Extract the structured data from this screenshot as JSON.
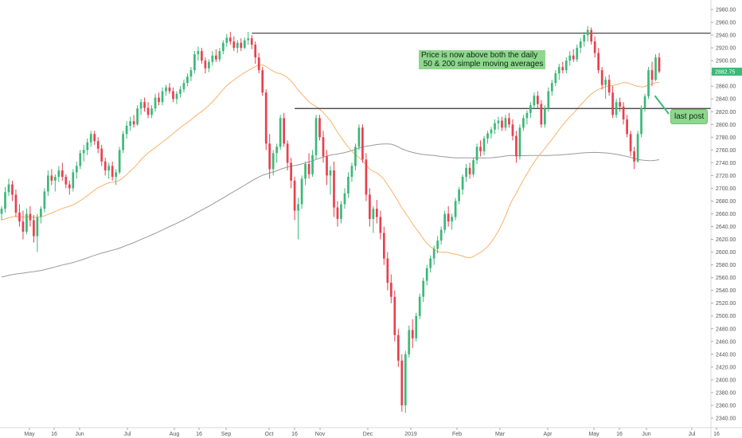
{
  "chart_data": {
    "type": "candlestick",
    "ylim": [
      2330,
      2990
    ],
    "y_ticks": [
      2340,
      2360,
      2380,
      2400,
      2420,
      2440,
      2460,
      2480,
      2500,
      2520,
      2540,
      2560,
      2580,
      2600,
      2620,
      2640,
      2660,
      2680,
      2700,
      2720,
      2740,
      2760,
      2780,
      2800,
      2820,
      2840,
      2860,
      2880,
      2900,
      2920,
      2940,
      2960,
      2980
    ],
    "y_tick_labels": [
      "2340.00",
      "2360.00",
      "2380.00",
      "2400.00",
      "2420.00",
      "2440.00",
      "2460.00",
      "2480.00",
      "2500.00",
      "2520.00",
      "2540.00",
      "2560.00",
      "2580.00",
      "2600.00",
      "2620.00",
      "2640.00",
      "2660.00",
      "2680.00",
      "2700.00",
      "2720.00",
      "2740.00",
      "2760.00",
      "2780.00",
      "2800.00",
      "2820.00",
      "2840.00",
      "2860.00",
      "2880.00",
      "2900.00",
      "2920.00",
      "2940.00",
      "2960.00",
      "2980.00"
    ],
    "x_tick_labels": [
      "May",
      "16",
      "Jun",
      "Jul",
      "Aug",
      "16",
      "Sep",
      "Oct",
      "16",
      "Nov",
      "Dec",
      "2019",
      "Feb",
      "Mar",
      "Apr",
      "May",
      "16",
      "Jun",
      "Jul",
      "16"
    ],
    "last_price_label": "2882.75",
    "last_price": 2882.75,
    "horizontal_levels": [
      {
        "value": 2943,
        "start_bar": 70
      },
      {
        "value": 2825,
        "start_bar": 82
      }
    ],
    "sma_labels": [
      "50",
      "200"
    ],
    "colors": {
      "up": "#26a69a",
      "down": "#ef5350",
      "up_fill": "#3cb878",
      "down_fill": "#e8404e",
      "sma50": "#f7b26a",
      "sma200": "#9a9a9a",
      "level": "#333333",
      "note_bg": "#8fd68f",
      "price_badge": "#3cb878",
      "axis": "#d8d8d8"
    },
    "bars": [
      [
        2660,
        2672,
        2650,
        2668
      ],
      [
        2668,
        2702,
        2662,
        2694
      ],
      [
        2694,
        2715,
        2688,
        2706
      ],
      [
        2706,
        2712,
        2680,
        2690
      ],
      [
        2690,
        2698,
        2655,
        2662
      ],
      [
        2662,
        2675,
        2640,
        2648
      ],
      [
        2648,
        2665,
        2620,
        2632
      ],
      [
        2632,
        2668,
        2628,
        2660
      ],
      [
        2660,
        2672,
        2640,
        2650
      ],
      [
        2650,
        2658,
        2615,
        2625
      ],
      [
        2625,
        2660,
        2600,
        2655
      ],
      [
        2655,
        2672,
        2645,
        2668
      ],
      [
        2668,
        2700,
        2662,
        2695
      ],
      [
        2695,
        2728,
        2688,
        2720
      ],
      [
        2720,
        2730,
        2705,
        2712
      ],
      [
        2712,
        2722,
        2695,
        2718
      ],
      [
        2718,
        2735,
        2710,
        2728
      ],
      [
        2728,
        2740,
        2712,
        2718
      ],
      [
        2718,
        2722,
        2700,
        2706
      ],
      [
        2706,
        2712,
        2690,
        2700
      ],
      [
        2700,
        2730,
        2695,
        2725
      ],
      [
        2725,
        2742,
        2715,
        2735
      ],
      [
        2735,
        2760,
        2730,
        2755
      ],
      [
        2755,
        2768,
        2742,
        2760
      ],
      [
        2760,
        2778,
        2752,
        2772
      ],
      [
        2772,
        2790,
        2765,
        2785
      ],
      [
        2785,
        2790,
        2768,
        2774
      ],
      [
        2774,
        2780,
        2755,
        2762
      ],
      [
        2762,
        2768,
        2735,
        2742
      ],
      [
        2742,
        2748,
        2720,
        2728
      ],
      [
        2728,
        2740,
        2715,
        2735
      ],
      [
        2735,
        2742,
        2712,
        2718
      ],
      [
        2718,
        2730,
        2705,
        2725
      ],
      [
        2725,
        2765,
        2722,
        2760
      ],
      [
        2760,
        2790,
        2755,
        2785
      ],
      [
        2785,
        2805,
        2778,
        2798
      ],
      [
        2798,
        2812,
        2790,
        2805
      ],
      [
        2805,
        2815,
        2795,
        2800
      ],
      [
        2800,
        2830,
        2798,
        2825
      ],
      [
        2825,
        2840,
        2815,
        2835
      ],
      [
        2835,
        2842,
        2820,
        2826
      ],
      [
        2826,
        2835,
        2810,
        2815
      ],
      [
        2815,
        2830,
        2810,
        2825
      ],
      [
        2825,
        2848,
        2820,
        2842
      ],
      [
        2842,
        2850,
        2830,
        2835
      ],
      [
        2835,
        2858,
        2830,
        2852
      ],
      [
        2852,
        2862,
        2845,
        2858
      ],
      [
        2858,
        2865,
        2848,
        2852
      ],
      [
        2852,
        2858,
        2835,
        2840
      ],
      [
        2840,
        2852,
        2832,
        2848
      ],
      [
        2848,
        2860,
        2842,
        2855
      ],
      [
        2855,
        2870,
        2850,
        2865
      ],
      [
        2865,
        2880,
        2860,
        2875
      ],
      [
        2875,
        2890,
        2868,
        2885
      ],
      [
        2885,
        2915,
        2880,
        2910
      ],
      [
        2910,
        2922,
        2900,
        2915
      ],
      [
        2915,
        2920,
        2895,
        2900
      ],
      [
        2900,
        2905,
        2880,
        2888
      ],
      [
        2888,
        2902,
        2882,
        2898
      ],
      [
        2898,
        2915,
        2892,
        2908
      ],
      [
        2908,
        2918,
        2898,
        2902
      ],
      [
        2902,
        2920,
        2898,
        2915
      ],
      [
        2915,
        2932,
        2910,
        2928
      ],
      [
        2928,
        2942,
        2922,
        2936
      ],
      [
        2936,
        2945,
        2925,
        2930
      ],
      [
        2930,
        2938,
        2915,
        2920
      ],
      [
        2920,
        2932,
        2912,
        2928
      ],
      [
        2928,
        2935,
        2915,
        2920
      ],
      [
        2920,
        2936,
        2918,
        2932
      ],
      [
        2932,
        2945,
        2925,
        2935
      ],
      [
        2935,
        2940,
        2918,
        2925
      ],
      [
        2925,
        2930,
        2895,
        2905
      ],
      [
        2905,
        2912,
        2880,
        2885
      ],
      [
        2885,
        2890,
        2845,
        2850
      ],
      [
        2850,
        2855,
        2760,
        2770
      ],
      [
        2770,
        2785,
        2715,
        2730
      ],
      [
        2730,
        2760,
        2720,
        2755
      ],
      [
        2755,
        2770,
        2740,
        2765
      ],
      [
        2765,
        2815,
        2760,
        2810
      ],
      [
        2810,
        2818,
        2765,
        2770
      ],
      [
        2770,
        2775,
        2728,
        2740
      ],
      [
        2740,
        2748,
        2700,
        2712
      ],
      [
        2712,
        2718,
        2650,
        2665
      ],
      [
        2665,
        2685,
        2620,
        2675
      ],
      [
        2675,
        2720,
        2668,
        2715
      ],
      [
        2715,
        2742,
        2705,
        2738
      ],
      [
        2738,
        2755,
        2715,
        2722
      ],
      [
        2722,
        2760,
        2718,
        2752
      ],
      [
        2752,
        2815,
        2745,
        2810
      ],
      [
        2810,
        2815,
        2775,
        2780
      ],
      [
        2780,
        2790,
        2740,
        2750
      ],
      [
        2750,
        2760,
        2705,
        2720
      ],
      [
        2720,
        2735,
        2690,
        2728
      ],
      [
        2728,
        2742,
        2655,
        2670
      ],
      [
        2670,
        2680,
        2640,
        2652
      ],
      [
        2652,
        2680,
        2645,
        2675
      ],
      [
        2675,
        2700,
        2668,
        2692
      ],
      [
        2692,
        2725,
        2685,
        2718
      ],
      [
        2718,
        2740,
        2710,
        2735
      ],
      [
        2735,
        2770,
        2728,
        2765
      ],
      [
        2765,
        2800,
        2760,
        2795
      ],
      [
        2795,
        2800,
        2740,
        2745
      ],
      [
        2745,
        2755,
        2680,
        2690
      ],
      [
        2690,
        2700,
        2640,
        2652
      ],
      [
        2652,
        2672,
        2630,
        2668
      ],
      [
        2668,
        2682,
        2645,
        2655
      ],
      [
        2655,
        2665,
        2620,
        2630
      ],
      [
        2630,
        2640,
        2580,
        2590
      ],
      [
        2590,
        2600,
        2540,
        2552
      ],
      [
        2552,
        2565,
        2520,
        2530
      ],
      [
        2530,
        2540,
        2460,
        2470
      ],
      [
        2470,
        2480,
        2420,
        2430
      ],
      [
        2430,
        2440,
        2350,
        2360
      ],
      [
        2360,
        2445,
        2348,
        2440
      ],
      [
        2440,
        2485,
        2435,
        2478
      ],
      [
        2478,
        2495,
        2450,
        2465
      ],
      [
        2465,
        2505,
        2460,
        2500
      ],
      [
        2500,
        2535,
        2495,
        2530
      ],
      [
        2530,
        2560,
        2522,
        2555
      ],
      [
        2555,
        2580,
        2548,
        2575
      ],
      [
        2575,
        2595,
        2568,
        2590
      ],
      [
        2590,
        2610,
        2580,
        2605
      ],
      [
        2605,
        2625,
        2598,
        2618
      ],
      [
        2618,
        2640,
        2612,
        2635
      ],
      [
        2635,
        2665,
        2630,
        2660
      ],
      [
        2660,
        2672,
        2640,
        2648
      ],
      [
        2648,
        2660,
        2635,
        2655
      ],
      [
        2655,
        2685,
        2650,
        2680
      ],
      [
        2680,
        2702,
        2675,
        2698
      ],
      [
        2698,
        2722,
        2690,
        2718
      ],
      [
        2718,
        2738,
        2710,
        2732
      ],
      [
        2732,
        2740,
        2715,
        2722
      ],
      [
        2722,
        2748,
        2718,
        2744
      ],
      [
        2744,
        2770,
        2738,
        2765
      ],
      [
        2765,
        2775,
        2750,
        2758
      ],
      [
        2758,
        2782,
        2752,
        2778
      ],
      [
        2778,
        2790,
        2770,
        2786
      ],
      [
        2786,
        2796,
        2778,
        2792
      ],
      [
        2792,
        2808,
        2785,
        2802
      ],
      [
        2802,
        2812,
        2792,
        2806
      ],
      [
        2806,
        2812,
        2790,
        2795
      ],
      [
        2795,
        2815,
        2790,
        2810
      ],
      [
        2810,
        2818,
        2795,
        2800
      ],
      [
        2800,
        2808,
        2775,
        2782
      ],
      [
        2782,
        2790,
        2740,
        2750
      ],
      [
        2750,
        2800,
        2745,
        2795
      ],
      [
        2795,
        2815,
        2790,
        2810
      ],
      [
        2810,
        2822,
        2800,
        2818
      ],
      [
        2818,
        2835,
        2810,
        2830
      ],
      [
        2830,
        2850,
        2825,
        2845
      ],
      [
        2845,
        2852,
        2825,
        2832
      ],
      [
        2832,
        2838,
        2795,
        2800
      ],
      [
        2800,
        2830,
        2795,
        2825
      ],
      [
        2825,
        2858,
        2820,
        2852
      ],
      [
        2852,
        2870,
        2845,
        2865
      ],
      [
        2865,
        2885,
        2860,
        2880
      ],
      [
        2880,
        2895,
        2870,
        2890
      ],
      [
        2890,
        2898,
        2880,
        2885
      ],
      [
        2885,
        2905,
        2880,
        2900
      ],
      [
        2900,
        2915,
        2892,
        2908
      ],
      [
        2908,
        2918,
        2898,
        2902
      ],
      [
        2902,
        2925,
        2898,
        2920
      ],
      [
        2920,
        2935,
        2912,
        2930
      ],
      [
        2930,
        2945,
        2922,
        2940
      ],
      [
        2940,
        2954,
        2930,
        2948
      ],
      [
        2948,
        2952,
        2925,
        2930
      ],
      [
        2930,
        2938,
        2905,
        2912
      ],
      [
        2912,
        2920,
        2880,
        2885
      ],
      [
        2885,
        2890,
        2855,
        2862
      ],
      [
        2862,
        2875,
        2840,
        2870
      ],
      [
        2870,
        2878,
        2845,
        2850
      ],
      [
        2850,
        2860,
        2810,
        2815
      ],
      [
        2815,
        2840,
        2810,
        2835
      ],
      [
        2835,
        2842,
        2820,
        2828
      ],
      [
        2828,
        2835,
        2800,
        2808
      ],
      [
        2808,
        2815,
        2780,
        2785
      ],
      [
        2785,
        2790,
        2750,
        2758
      ],
      [
        2758,
        2765,
        2730,
        2742
      ],
      [
        2742,
        2790,
        2740,
        2785
      ],
      [
        2785,
        2830,
        2780,
        2826
      ],
      [
        2826,
        2848,
        2820,
        2844
      ],
      [
        2844,
        2890,
        2840,
        2885
      ],
      [
        2885,
        2898,
        2860,
        2870
      ],
      [
        2870,
        2910,
        2868,
        2905
      ],
      [
        2905,
        2912,
        2880,
        2883
      ]
    ]
  },
  "annotations": {
    "main_note_line1": "Price is now above both the daily",
    "main_note_line2": " 50 & 200 simple moving averages",
    "last_post": "last post"
  }
}
